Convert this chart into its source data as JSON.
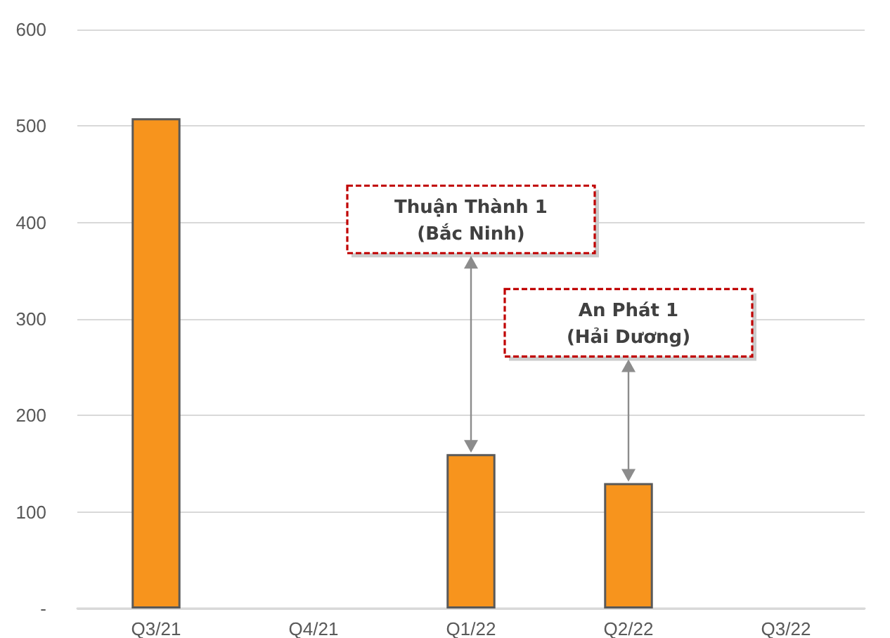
{
  "chart_data": {
    "type": "bar",
    "categories": [
      "Q3/21",
      "Q4/21",
      "Q1/22",
      "Q2/22",
      "Q3/22"
    ],
    "values": [
      508,
      null,
      160,
      130,
      null
    ],
    "color": "#f7941d",
    "ylim": [
      0,
      600
    ],
    "yticks": [
      {
        "value": 0,
        "label": "-"
      },
      100,
      200,
      300,
      400,
      500,
      600
    ],
    "grid": "y",
    "annotations": [
      "Thuận Thành 1\n(Bắc Ninh)",
      "An Phát 1\n(Hải Dương)"
    ]
  }
}
